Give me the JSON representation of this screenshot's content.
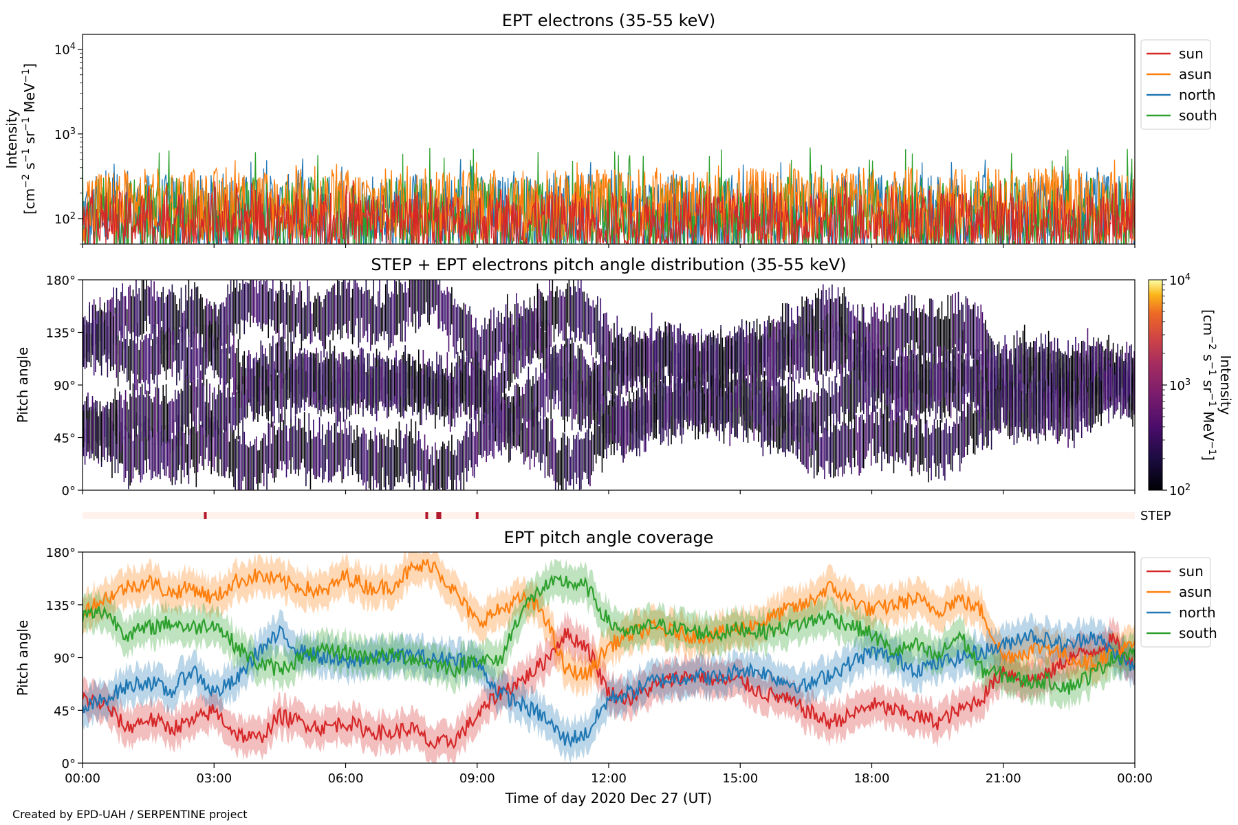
{
  "chart_data": [
    {
      "type": "line",
      "title": "EPT electrons (35-55 keV)",
      "ylabel_line1": "Intensity",
      "ylabel_line2_parts": [
        "[cm",
        "−2",
        " s",
        "−1",
        " sr",
        "−1",
        " MeV",
        "−1",
        "]"
      ],
      "y_scale": "log",
      "ylim": [
        50,
        15000
      ],
      "y_ticks": [
        {
          "value": 100,
          "base": "10",
          "exp": "2"
        },
        {
          "value": 1000,
          "base": "10",
          "exp": "3"
        },
        {
          "value": 10000,
          "base": "10",
          "exp": "4"
        }
      ],
      "xlim_hours": [
        0,
        24
      ],
      "series": [
        {
          "name": "sun",
          "color": "#d62728",
          "typical": 100,
          "spread": 0.18,
          "spikes_to": 300
        },
        {
          "name": "asun",
          "color": "#ff7f0e",
          "typical": 160,
          "spread": 0.22,
          "spikes_to": 500
        },
        {
          "name": "north",
          "color": "#1f77b4",
          "typical": 120,
          "spread": 0.25,
          "spikes_to": 520
        },
        {
          "name": "south",
          "color": "#2ca02c",
          "typical": 110,
          "spread": 0.25,
          "spikes_to": 700
        }
      ],
      "legend": "upper-right outside"
    },
    {
      "type": "heatmap",
      "title": "STEP + EPT electrons pitch angle distribution (35-55 keV)",
      "ylabel": "Pitch angle",
      "y_ticks": [
        "0°",
        "45°",
        "90°",
        "135°",
        "180°"
      ],
      "ylim": [
        0,
        180
      ],
      "xlim_hours": [
        0,
        24
      ],
      "colorbar": {
        "label": "Intensity",
        "units_parts": [
          "[cm",
          "−2",
          " s",
          "−1",
          " sr",
          "−1",
          " MeV",
          "−1",
          "]"
        ],
        "scale": "log",
        "range": [
          100,
          10000
        ],
        "ticks": [
          {
            "value": 100,
            "base": "10",
            "exp": "2"
          },
          {
            "value": 1000,
            "base": "10",
            "exp": "3"
          },
          {
            "value": 10000,
            "base": "10",
            "exp": "4"
          }
        ],
        "colormap": "inferno"
      }
    },
    {
      "type": "bar",
      "label": "STEP",
      "marks_hours": [
        2.8,
        7.85,
        8.1,
        8.15,
        9.0
      ],
      "xlim_hours": [
        0,
        24
      ]
    },
    {
      "type": "line",
      "title": "EPT pitch angle coverage",
      "ylabel": "Pitch angle",
      "y_ticks": [
        "0°",
        "45°",
        "90°",
        "135°",
        "180°"
      ],
      "ylim": [
        0,
        180
      ],
      "xlim_hours": [
        0,
        24
      ],
      "x_ticks": [
        "00:00",
        "03:00",
        "06:00",
        "09:00",
        "12:00",
        "15:00",
        "18:00",
        "21:00",
        "00:00"
      ],
      "xlabel": "Time of day 2020 Dec 27 (UT)",
      "band_half_width_deg": 15,
      "series": [
        {
          "name": "sun",
          "color": "#d62728",
          "x": [
            0,
            0.5,
            1,
            1.5,
            2,
            2.5,
            3,
            3.5,
            4,
            4.5,
            5,
            5.5,
            6,
            6.5,
            7,
            7.5,
            8,
            8.5,
            9,
            9.5,
            10,
            10.5,
            11,
            11.5,
            12,
            12.5,
            13,
            13.5,
            14,
            14.5,
            15,
            15.5,
            16,
            16.5,
            17,
            17.5,
            18,
            18.5,
            19,
            19.5,
            20,
            20.5,
            21,
            21.5,
            22,
            22.5,
            23,
            23.5,
            24
          ],
          "y": [
            55,
            50,
            30,
            38,
            30,
            35,
            45,
            25,
            20,
            40,
            35,
            30,
            35,
            28,
            25,
            30,
            15,
            20,
            40,
            60,
            70,
            85,
            110,
            100,
            60,
            55,
            65,
            72,
            75,
            70,
            70,
            60,
            55,
            45,
            35,
            40,
            50,
            45,
            40,
            35,
            45,
            55,
            80,
            70,
            75,
            90,
            95,
            105,
            80
          ]
        },
        {
          "name": "asun",
          "color": "#ff7f0e",
          "x": [
            0,
            0.5,
            1,
            1.5,
            2,
            2.5,
            3,
            3.5,
            4,
            4.5,
            5,
            5.5,
            6,
            6.5,
            7,
            7.5,
            8,
            8.5,
            9,
            9.5,
            10,
            10.5,
            11,
            11.5,
            12,
            12.5,
            13,
            13.5,
            14,
            14.5,
            15,
            15.5,
            16,
            16.5,
            17,
            17.5,
            18,
            18.5,
            19,
            19.5,
            20,
            20.5,
            21,
            21.5,
            22,
            22.5,
            23,
            23.5,
            24
          ],
          "y": [
            130,
            140,
            150,
            155,
            145,
            150,
            140,
            155,
            160,
            155,
            150,
            145,
            160,
            150,
            150,
            165,
            170,
            145,
            120,
            130,
            140,
            130,
            80,
            75,
            100,
            110,
            115,
            112,
            108,
            110,
            115,
            120,
            130,
            135,
            150,
            140,
            130,
            135,
            140,
            130,
            140,
            130,
            90,
            95,
            100,
            90,
            85,
            95,
            100
          ]
        },
        {
          "name": "north",
          "color": "#1f77b4",
          "x": [
            0,
            0.5,
            1,
            1.5,
            2,
            2.5,
            3,
            3.5,
            4,
            4.5,
            5,
            5.5,
            6,
            6.5,
            7,
            7.5,
            8,
            8.5,
            9,
            9.5,
            10,
            10.5,
            11,
            11.5,
            12,
            12.5,
            13,
            13.5,
            14,
            14.5,
            15,
            15.5,
            16,
            16.5,
            17,
            17.5,
            18,
            18.5,
            19,
            19.5,
            20,
            20.5,
            21,
            21.5,
            22,
            22.5,
            23,
            23.5,
            24
          ],
          "y": [
            45,
            55,
            65,
            70,
            60,
            80,
            60,
            70,
            95,
            110,
            95,
            90,
            85,
            90,
            90,
            92,
            88,
            90,
            85,
            60,
            50,
            40,
            20,
            25,
            55,
            60,
            70,
            72,
            75,
            72,
            80,
            78,
            70,
            65,
            75,
            85,
            95,
            90,
            80,
            85,
            90,
            95,
            100,
            110,
            105,
            100,
            110,
            95,
            80
          ]
        },
        {
          "name": "south",
          "color": "#2ca02c",
          "x": [
            0,
            0.5,
            1,
            1.5,
            2,
            2.5,
            3,
            3.5,
            4,
            4.5,
            5,
            5.5,
            6,
            6.5,
            7,
            7.5,
            8,
            8.5,
            9,
            9.5,
            10,
            10.5,
            11,
            11.5,
            12,
            12.5,
            13,
            13.5,
            14,
            14.5,
            15,
            15.5,
            16,
            16.5,
            17,
            17.5,
            18,
            18.5,
            19,
            19.5,
            20,
            20.5,
            21,
            21.5,
            22,
            22.5,
            23,
            23.5,
            24
          ],
          "y": [
            125,
            130,
            110,
            115,
            120,
            115,
            120,
            100,
            85,
            80,
            90,
            95,
            95,
            90,
            92,
            90,
            85,
            80,
            90,
            85,
            130,
            150,
            155,
            150,
            120,
            110,
            118,
            115,
            112,
            110,
            115,
            112,
            115,
            120,
            125,
            118,
            110,
            95,
            100,
            90,
            110,
            80,
            75,
            70,
            70,
            65,
            75,
            90,
            95
          ]
        }
      ],
      "legend": "upper-right outside"
    }
  ],
  "credit": "Created by EPD-UAH / SERPENTINE project"
}
